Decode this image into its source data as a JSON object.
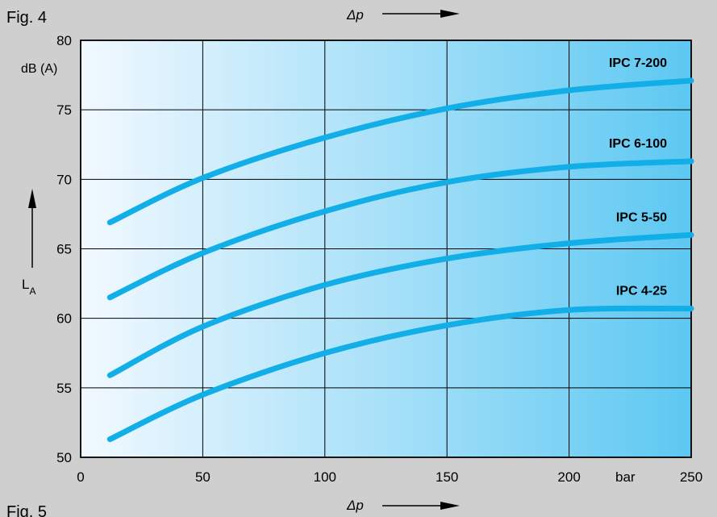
{
  "figure_labels": {
    "top": "Fig. 4",
    "bottom": "Fig. 5"
  },
  "colors": {
    "background": "#cfcfcf",
    "plot_gradient_start": "#f2f9ff",
    "plot_gradient_end": "#5dc8f2",
    "series_line": "#12aee8",
    "grid": "#000000"
  },
  "chart_data": {
    "type": "line",
    "xlabel": "Δp",
    "ylabel_symbol": "L",
    "ylabel_subscript": "A",
    "yunit": "dB (A)",
    "xunit": "bar",
    "xlim": [
      0,
      250
    ],
    "ylim": [
      50,
      80
    ],
    "x_ticks": [
      0,
      50,
      100,
      150,
      200,
      250
    ],
    "y_ticks": [
      50,
      55,
      60,
      65,
      70,
      75,
      80
    ],
    "grid": true,
    "series": [
      {
        "name": "IPC 7-200",
        "x": [
          12,
          50,
          100,
          150,
          200,
          250
        ],
        "y": [
          66.9,
          70.1,
          73.0,
          75.1,
          76.4,
          77.1
        ]
      },
      {
        "name": "IPC 6-100",
        "x": [
          12,
          50,
          100,
          150,
          200,
          250
        ],
        "y": [
          61.5,
          64.7,
          67.7,
          69.8,
          70.9,
          71.3
        ]
      },
      {
        "name": "IPC 5-50",
        "x": [
          12,
          50,
          100,
          150,
          200,
          250
        ],
        "y": [
          55.9,
          59.4,
          62.4,
          64.3,
          65.4,
          66.0
        ]
      },
      {
        "name": "IPC 4-25",
        "x": [
          12,
          50,
          100,
          150,
          200,
          250
        ],
        "y": [
          51.3,
          54.5,
          57.5,
          59.5,
          60.6,
          60.7
        ]
      }
    ]
  }
}
